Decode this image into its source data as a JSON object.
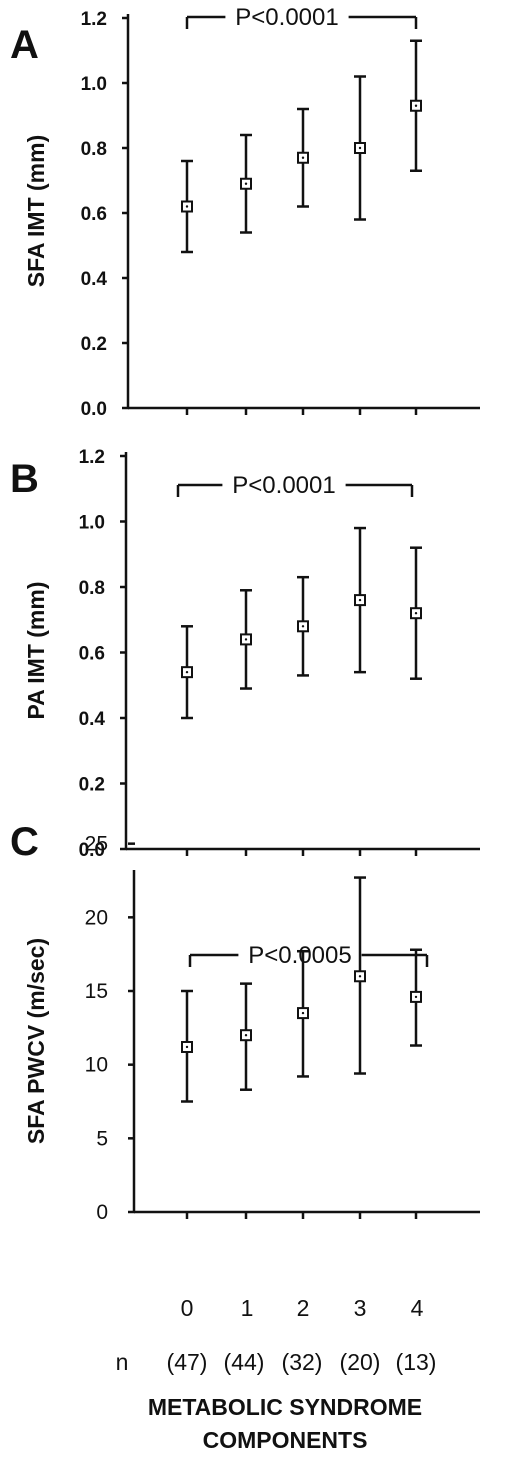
{
  "chart_data": [
    {
      "type": "scatter",
      "panel": "A",
      "ylabel": "SFA IMT (mm)",
      "ylim": [
        0,
        1.2
      ],
      "yticks": [
        "0.0",
        "0.2",
        "0.4",
        "0.6",
        "0.8",
        "1.0",
        "1.2"
      ],
      "categories": [
        "0",
        "1",
        "2",
        "3",
        "4"
      ],
      "series": [
        {
          "values": [
            0.62,
            0.69,
            0.77,
            0.8,
            0.93
          ],
          "lower": [
            0.48,
            0.54,
            0.62,
            0.58,
            0.73
          ],
          "upper": [
            0.76,
            0.84,
            0.92,
            1.02,
            1.13
          ]
        }
      ],
      "annotation": "P<0.0001",
      "grid": false
    },
    {
      "type": "scatter",
      "panel": "B",
      "ylabel": "PA IMT (mm)",
      "ylim": [
        0,
        1.2
      ],
      "yticks": [
        "0.0",
        "0.2",
        "0.4",
        "0.6",
        "0.8",
        "1.0",
        "1.2"
      ],
      "categories": [
        "0",
        "1",
        "2",
        "3",
        "4"
      ],
      "series": [
        {
          "values": [
            0.54,
            0.64,
            0.68,
            0.76,
            0.72
          ],
          "lower": [
            0.4,
            0.49,
            0.53,
            0.54,
            0.52
          ],
          "upper": [
            0.68,
            0.79,
            0.83,
            0.98,
            0.92
          ]
        }
      ],
      "annotation": "P<0.0001",
      "grid": false
    },
    {
      "type": "scatter",
      "panel": "C",
      "ylabel": "SFA PWCV (m/sec)",
      "ylim": [
        0,
        30
      ],
      "yticks": [
        "0",
        "5",
        "10",
        "15",
        "20",
        "25"
      ],
      "categories": [
        "0",
        "1",
        "2",
        "3",
        "4"
      ],
      "series": [
        {
          "values": [
            11.2,
            12.0,
            13.5,
            16.0,
            14.6
          ],
          "lower": [
            7.5,
            8.3,
            9.2,
            9.4,
            11.3
          ],
          "upper": [
            15.0,
            15.5,
            17.7,
            22.7,
            17.8
          ]
        }
      ],
      "annotation": "P<0.0005",
      "grid": false
    }
  ],
  "x_axis": {
    "n_label": "n",
    "categories": [
      "0",
      "1",
      "2",
      "3",
      "4"
    ],
    "counts": [
      "(47)",
      "(44)",
      "(32)",
      "(20)",
      "(13)"
    ],
    "title_line1": "METABOLIC SYNDROME",
    "title_line2": "COMPONENTS"
  }
}
